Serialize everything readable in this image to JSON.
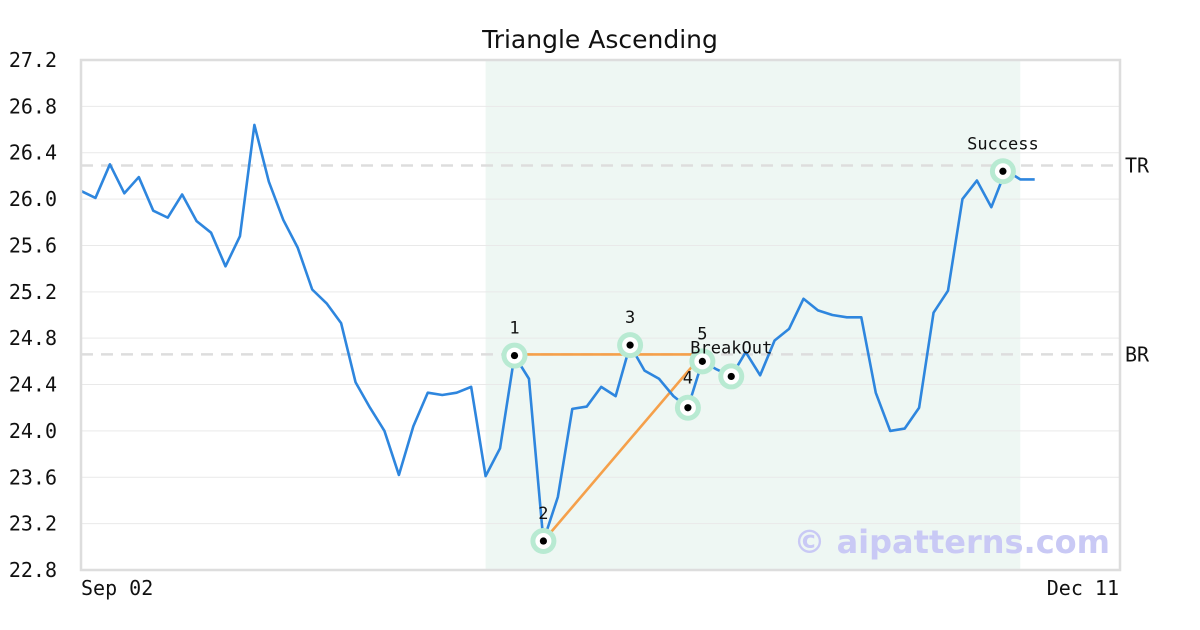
{
  "chart_data": {
    "type": "line",
    "title": "Triangle Ascending",
    "xlabel": "",
    "ylabel": "",
    "ylim": [
      22.8,
      27.2
    ],
    "yticks": [
      "22.8",
      "23.2",
      "23.6",
      "24.0",
      "24.4",
      "24.8",
      "25.2",
      "25.6",
      "26.0",
      "26.4",
      "26.8",
      "27.2"
    ],
    "xtick_labels": [
      "Sep 02",
      "Dec 11"
    ],
    "grid": true,
    "series": [
      {
        "color": "#2e86de",
        "values": [
          26.07,
          26.01,
          26.3,
          26.05,
          26.19,
          25.9,
          25.84,
          26.04,
          25.81,
          25.71,
          25.42,
          25.68,
          26.64,
          26.15,
          25.82,
          25.58,
          25.22,
          25.1,
          24.93,
          24.42,
          24.2,
          24.0,
          23.62,
          24.04,
          24.33,
          24.31,
          24.33,
          24.38,
          23.61,
          23.85,
          24.65,
          24.45,
          23.05,
          23.43,
          24.19,
          24.21,
          24.38,
          24.3,
          24.74,
          24.52,
          24.45,
          24.3,
          24.2,
          24.6,
          24.53,
          24.47,
          24.68,
          24.48,
          24.78,
          24.88,
          25.14,
          25.04,
          25.0,
          24.98,
          24.98,
          24.33,
          24.0,
          24.02,
          24.2,
          25.02,
          25.21,
          26.0,
          26.16,
          25.93,
          26.25,
          26.17,
          26.17
        ]
      }
    ],
    "pattern_region": {
      "start_index": 28,
      "end_index": 65,
      "color": "#eef7f3"
    },
    "reference_lines": [
      {
        "label": "TR",
        "value": 26.29
      },
      {
        "label": "BR",
        "value": 24.66
      }
    ],
    "pattern_lines": [
      {
        "from_index": 30,
        "from_value": 24.66,
        "to_index": 43,
        "to_value": 24.66
      },
      {
        "from_index": 32,
        "from_value": 23.05,
        "to_index": 43,
        "to_value": 24.66
      }
    ],
    "pattern_points": [
      {
        "label": "1",
        "index": 30,
        "value": 24.65
      },
      {
        "label": "2",
        "index": 32,
        "value": 23.05
      },
      {
        "label": "3",
        "index": 38,
        "value": 24.74
      },
      {
        "label": "4",
        "index": 42,
        "value": 24.2
      },
      {
        "label": "5",
        "index": 43,
        "value": 24.6
      },
      {
        "label": "BreakOut",
        "index": 45,
        "value": 24.47
      },
      {
        "label": "Success",
        "index": 63.8,
        "value": 26.24
      }
    ],
    "colors": {
      "line": "#2e86de",
      "pattern": "#f5a04a",
      "marker_halo": "#b8ead2",
      "dashed": "#dddddd"
    }
  },
  "watermark": "© aipatterns.com"
}
